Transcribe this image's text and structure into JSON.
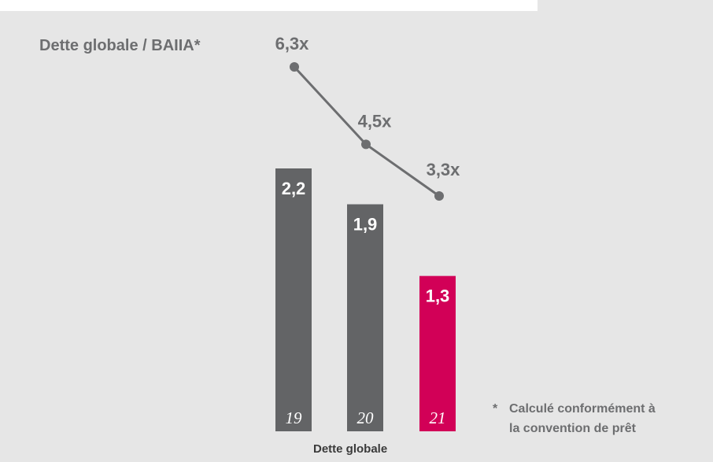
{
  "colors": {
    "panel_bg": "#e6e6e6",
    "bar_gray": "#636466",
    "bar_accent": "#d20057",
    "line": "#6d6e70",
    "label_gray": "#6d6e70",
    "white": "#ffffff"
  },
  "title": "Dette globale / BAIIA*",
  "footnote": {
    "marker": "*",
    "text": "Calculé conformément à la convention de prêt"
  },
  "xaxis_title": "Dette globale",
  "chart_data": [
    {
      "type": "bar",
      "title": "",
      "xlabel": "Dette globale",
      "categories": [
        "19",
        "20",
        "21"
      ],
      "values": [
        2.2,
        1.9,
        1.3
      ],
      "value_labels": [
        "2,2",
        "1,9",
        "1,3"
      ],
      "highlight_index": 2,
      "ylim": [
        0,
        2.2
      ]
    },
    {
      "type": "line",
      "title": "Dette globale / BAIIA*",
      "categories": [
        "19",
        "20",
        "21"
      ],
      "values": [
        6.3,
        4.5,
        3.3
      ],
      "value_labels": [
        "6,3x",
        "4,5x",
        "3,3x"
      ]
    }
  ]
}
